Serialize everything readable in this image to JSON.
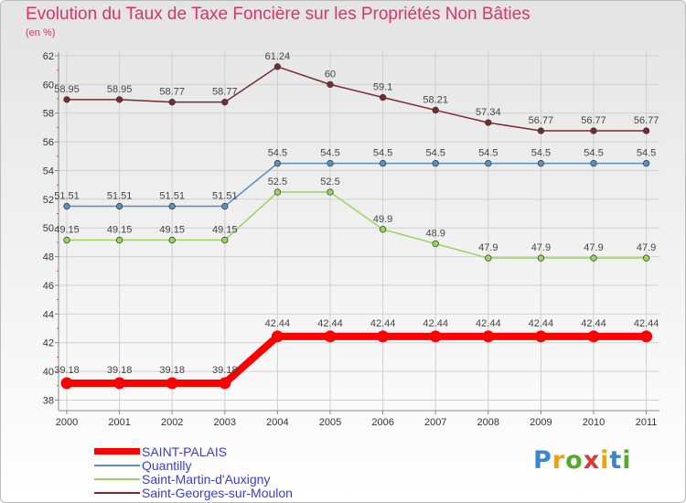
{
  "title": "Evolution du Taux de Taxe Foncière sur les Propriétés Non Bâties",
  "subtitle": "(en %)",
  "logo_text": "Proxiti",
  "chart_data": {
    "type": "line",
    "title": "Evolution du Taux de Taxe Foncière sur les Propriétés Non Bâties",
    "ylabel": "(en %)",
    "xlabel": "",
    "categories": [
      "2000",
      "2001",
      "2002",
      "2003",
      "2004",
      "2005",
      "2006",
      "2007",
      "2008",
      "2009",
      "2010",
      "2011"
    ],
    "ylim": [
      37.5,
      62
    ],
    "yticks": [
      "38",
      "40",
      "42",
      "44",
      "46",
      "48",
      "50",
      "52",
      "54",
      "56",
      "58",
      "60",
      "62"
    ],
    "grid": true,
    "legend_position": "bottom-left",
    "series": [
      {
        "name": "SAINT-PALAIS",
        "color": "#ff0000",
        "highlight": true,
        "values": [
          39.18,
          39.18,
          39.18,
          39.18,
          42.44,
          42.44,
          42.44,
          42.44,
          42.44,
          42.44,
          42.44,
          42.44
        ],
        "labels": [
          "39.18",
          "39.18",
          "39.18",
          "39.18",
          "42.44",
          "42.44",
          "42.44",
          "42.44",
          "42.44",
          "42.44",
          "42.44",
          "42.44"
        ]
      },
      {
        "name": "Quantilly",
        "color": "#5b8fc0",
        "highlight": false,
        "values": [
          51.51,
          51.51,
          51.51,
          51.51,
          54.5,
          54.5,
          54.5,
          54.5,
          54.5,
          54.5,
          54.5,
          54.5
        ],
        "labels": [
          "51.51",
          "51.51",
          "51.51",
          "51.51",
          "54.5",
          "54.5",
          "54.5",
          "54.5",
          "54.5",
          "54.5",
          "54.5",
          "54.5"
        ]
      },
      {
        "name": "Saint-Martin-d'Auxigny",
        "color": "#99d461",
        "highlight": false,
        "values": [
          49.15,
          49.15,
          49.15,
          49.15,
          52.5,
          52.5,
          49.9,
          48.9,
          47.9,
          47.9,
          47.9,
          47.9
        ],
        "labels": [
          "49.15",
          "49.15",
          "49.15",
          "49.15",
          "52.5",
          "52.5",
          "49.9",
          "48.9",
          "47.9",
          "47.9",
          "47.9",
          "47.9"
        ]
      },
      {
        "name": "Saint-Georges-sur-Moulon",
        "color": "#7a2a2e",
        "highlight": false,
        "values": [
          58.95,
          58.95,
          58.77,
          58.77,
          61.24,
          60,
          59.1,
          58.21,
          57.34,
          56.77,
          56.77,
          56.77
        ],
        "labels": [
          "58.95",
          "58.95",
          "58.77",
          "58.77",
          "61.24",
          "60",
          "59.1",
          "58.21",
          "57.34",
          "56.77",
          "56.77",
          "56.77"
        ]
      }
    ]
  }
}
